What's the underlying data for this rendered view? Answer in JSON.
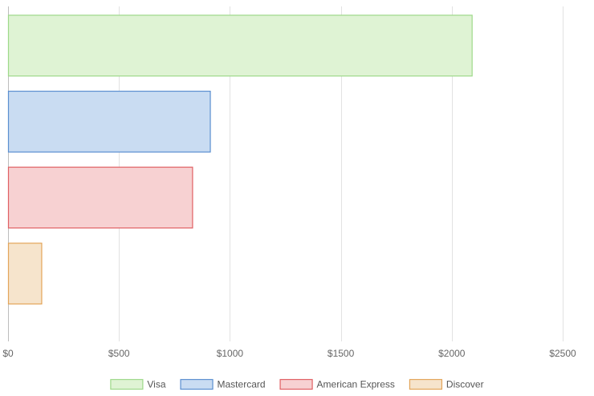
{
  "chart_data": {
    "type": "bar",
    "orientation": "horizontal",
    "title": "",
    "xlabel": "",
    "ylabel": "",
    "xlim": [
      0,
      2500
    ],
    "x_ticks": [
      0,
      500,
      1000,
      1500,
      2000,
      2500
    ],
    "x_tick_labels": [
      "$0",
      "$500",
      "$1000",
      "$1500",
      "$2000",
      "$2500"
    ],
    "grid": true,
    "legend_position": "bottom",
    "series": [
      {
        "name": "Visa",
        "value": 2090,
        "fill": "#dff3d4",
        "stroke": "#9ed98a"
      },
      {
        "name": "Mastercard",
        "value": 910,
        "fill": "#c9dcf2",
        "stroke": "#5b8fd0"
      },
      {
        "name": "American Express",
        "value": 830,
        "fill": "#f7d1d2",
        "stroke": "#e06063"
      },
      {
        "name": "Discover",
        "value": 150,
        "fill": "#f6e4cc",
        "stroke": "#e3a55a"
      }
    ]
  }
}
